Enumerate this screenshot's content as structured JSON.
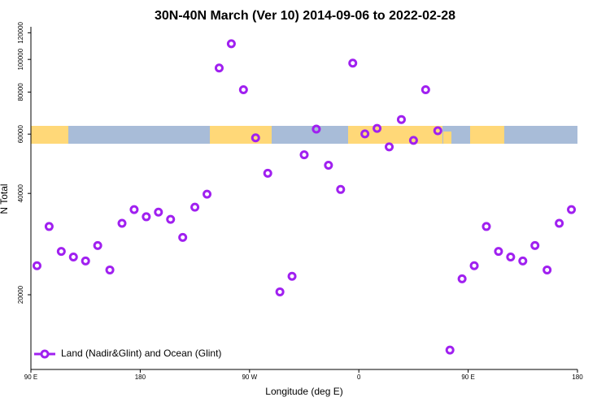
{
  "chart_data": {
    "type": "scatter",
    "title": "30N-40N March (Ver 10)   2014-09-06 to 2022-02-28",
    "x_label": "Longitude (deg E)",
    "y_label": "N Total",
    "log_y": true,
    "xlim": [
      90,
      540
    ],
    "ylim": [
      12000,
      125000
    ],
    "xticks": [
      {
        "value": 90,
        "label": "90 E"
      },
      {
        "value": 180,
        "label": "180"
      },
      {
        "value": 270,
        "label": "90 W"
      },
      {
        "value": 360,
        "label": "0"
      },
      {
        "value": 450,
        "label": "90 E"
      },
      {
        "value": 540,
        "label": "180"
      }
    ],
    "yticks": [
      20000,
      40000,
      60000,
      80000,
      100000,
      120000
    ],
    "legend_position": "lower left",
    "series": [
      {
        "name": "Land (Nadir&Glint) and Ocean (Glint)",
        "color": "#a020f0",
        "x": [
          95,
          105,
          115,
          125,
          135,
          145,
          155,
          165,
          175,
          185,
          195,
          205,
          215,
          225,
          235,
          245,
          255,
          265,
          275,
          285,
          295,
          305,
          315,
          325,
          335,
          345,
          355,
          365,
          375,
          385,
          395,
          405,
          415,
          425,
          435,
          445,
          455,
          465,
          475,
          485,
          495,
          505,
          515,
          525,
          535
        ],
        "values": [
          24400,
          31900,
          26900,
          25900,
          25200,
          28000,
          23700,
          32600,
          35800,
          34100,
          35200,
          33500,
          29600,
          36400,
          39800,
          94300,
          111300,
          81300,
          58500,
          45900,
          20400,
          22700,
          52100,
          62100,
          48500,
          41100,
          97500,
          60100,
          62400,
          55000,
          66300,
          57500,
          81300,
          61400,
          13700,
          22300,
          24400,
          31900,
          26900,
          25900,
          25200,
          28000,
          23700,
          32600,
          35800
        ]
      }
    ]
  }
}
